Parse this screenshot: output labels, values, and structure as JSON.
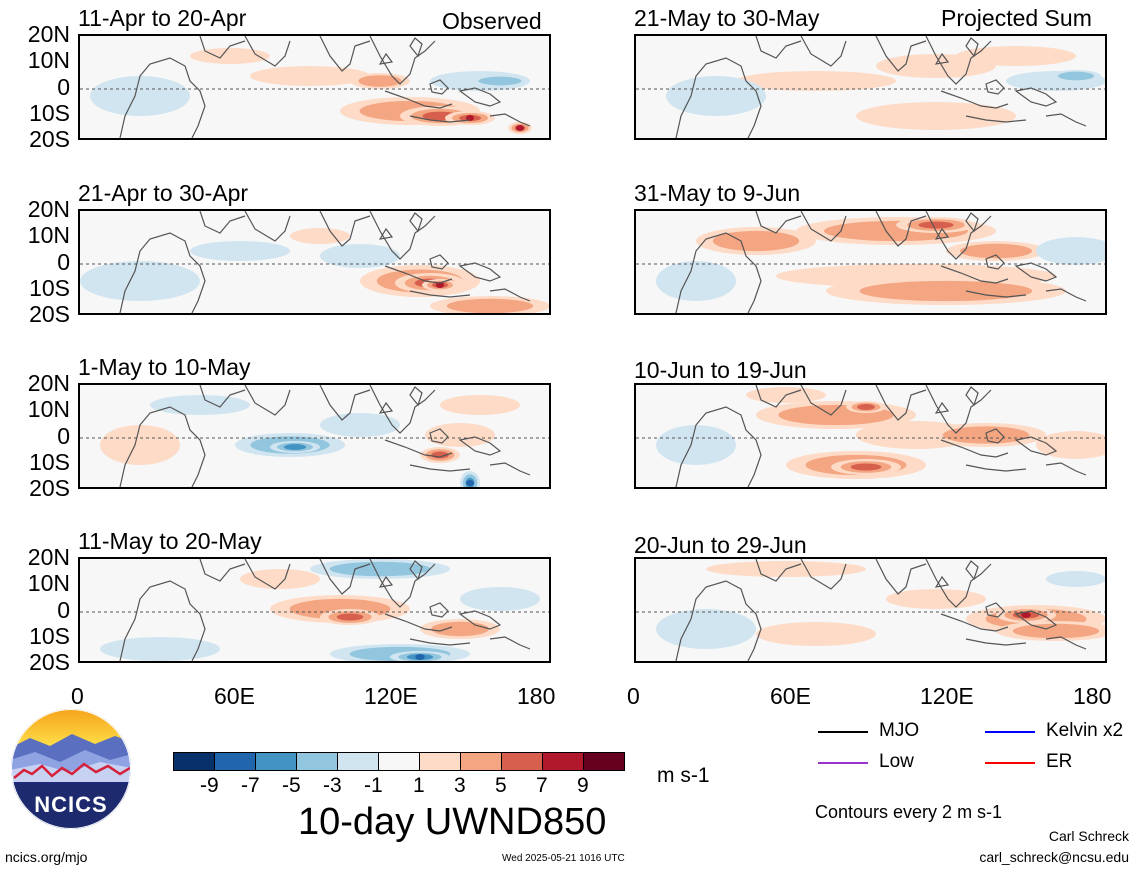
{
  "panels": [
    {
      "title": "11-Apr to 20-Apr",
      "right_label": "Observed"
    },
    {
      "title": "21-Apr to 30-Apr",
      "right_label": ""
    },
    {
      "title": "1-May to 10-May",
      "right_label": ""
    },
    {
      "title": "11-May to 20-May",
      "right_label": ""
    },
    {
      "title": "21-May to 30-May",
      "right_label": "Projected Sum"
    },
    {
      "title": "31-May to 9-Jun",
      "right_label": ""
    },
    {
      "title": "10-Jun to 19-Jun",
      "right_label": ""
    },
    {
      "title": "20-Jun to 29-Jun",
      "right_label": ""
    }
  ],
  "lat_labels": [
    "20N",
    "10N",
    "0",
    "10S",
    "20S"
  ],
  "lon_labels": [
    "0",
    "60E",
    "120E",
    "180"
  ],
  "colorbar": {
    "colors": [
      "#08306b",
      "#2166ac",
      "#4393c3",
      "#92c5de",
      "#d1e5f0",
      "#f7f7f7",
      "#fddbc7",
      "#f4a582",
      "#d6604d",
      "#b2182b",
      "#67001f"
    ],
    "labels": [
      "-9",
      "-7",
      "-5",
      "-3",
      "-1",
      "1",
      "3",
      "5",
      "7",
      "9"
    ],
    "units": "m s-1"
  },
  "main_title": "10-day UWND850",
  "legend": {
    "mjo": "MJO",
    "kelvin": "Kelvin x2",
    "low": "Low",
    "er": "ER",
    "mjo_color": "#000000",
    "kelvin_color": "#0000ff",
    "low_color": "#9933cc",
    "er_color": "#ff0000"
  },
  "contours_note": "Contours every 2 m s-1",
  "author": "Carl Schreck",
  "email": "carl_schreck@ncsu.edu",
  "site": "ncics.org/mjo",
  "timestamp": "Wed 2025-05-21 1016 UTC",
  "logo_text": "NCICS"
}
